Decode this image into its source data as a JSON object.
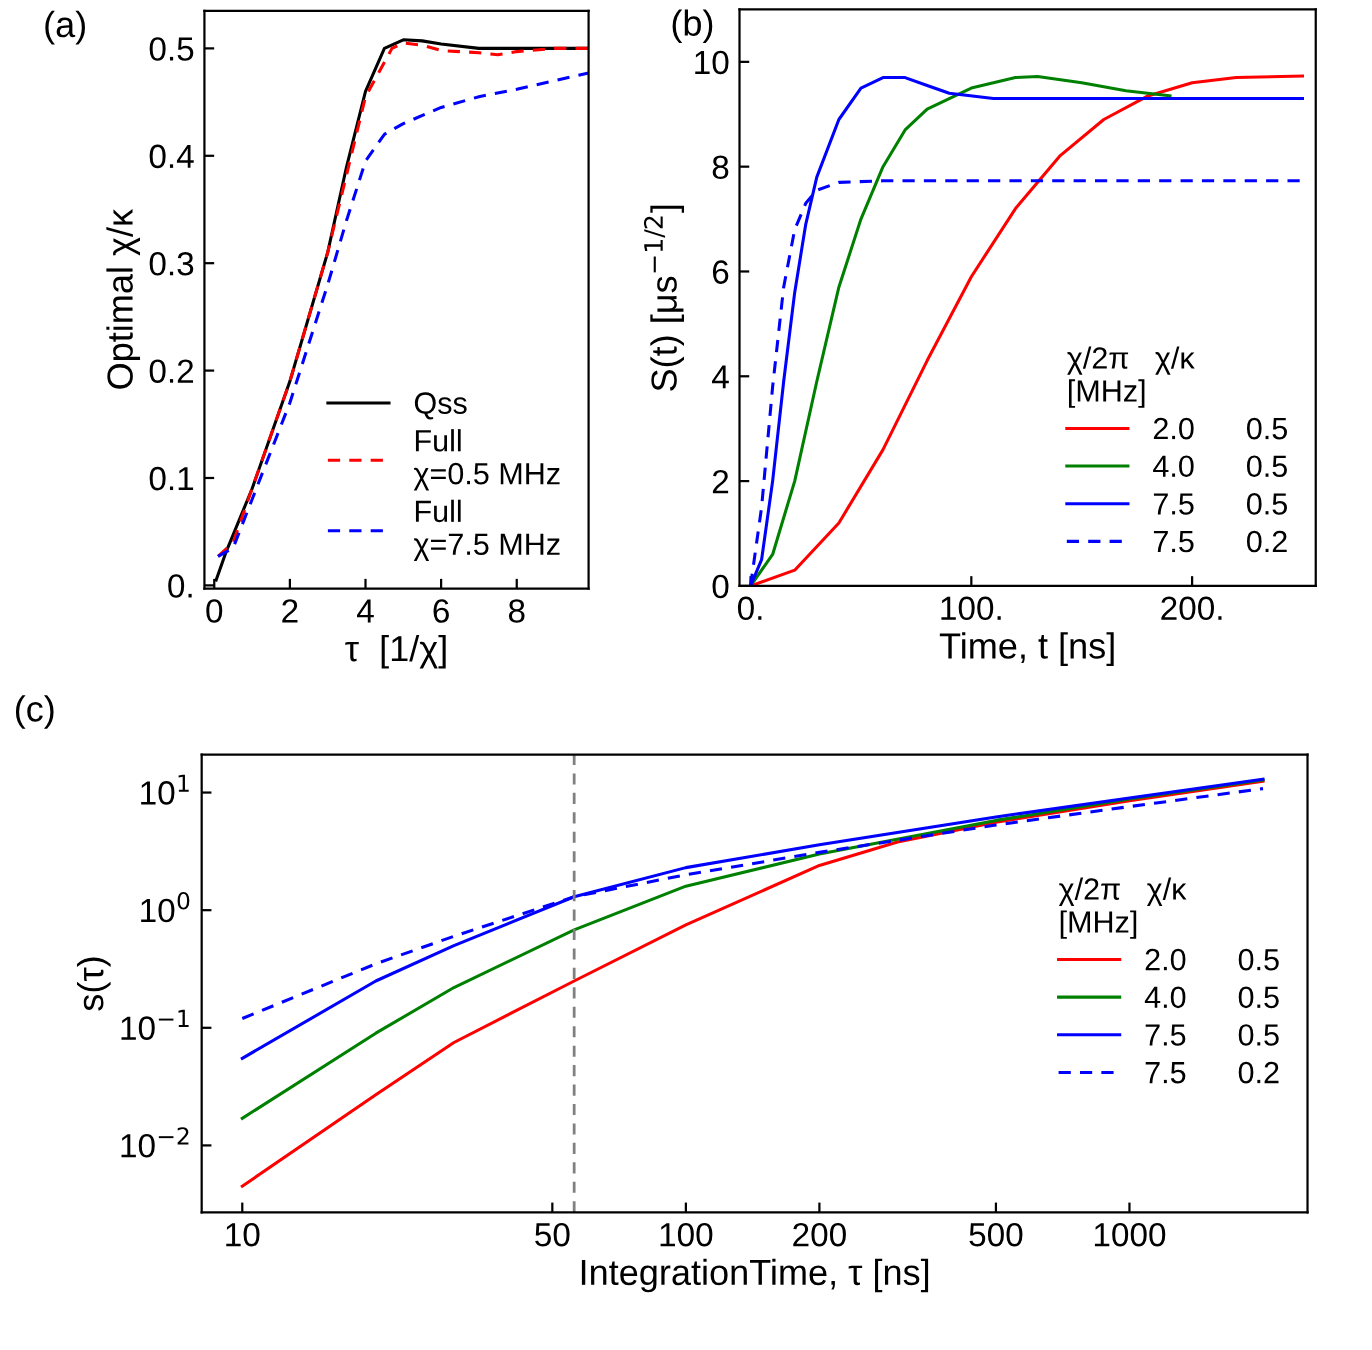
{
  "chart_data": [
    {
      "type": "line",
      "xlabel": "τ  [1/χ]",
      "ylabel": "Optimal χ/κ",
      "annotations": [
        "(a)"
      ],
      "xlim": [
        -0.26,
        9.9
      ],
      "ylim": [
        -0.003,
        0.535
      ],
      "xticks": [
        0,
        2,
        4,
        6,
        8
      ],
      "yticks": [
        {
          "value": 0,
          "label": "0."
        },
        0.1,
        0.2,
        0.3,
        0.4,
        0.5
      ],
      "grid": false,
      "legend": "bottom right",
      "series": [
        {
          "name": "Qss",
          "color": "#000000",
          "line_style": "solid",
          "x": [
            0.05,
            0.3,
            1,
            2,
            3,
            3.5,
            4,
            4.5,
            5,
            5.5,
            6,
            7,
            8,
            9.9
          ],
          "values": [
            0.005,
            0.03,
            0.09,
            0.19,
            0.31,
            0.39,
            0.46,
            0.5,
            0.508,
            0.507,
            0.504,
            0.5,
            0.5,
            0.5
          ]
        },
        {
          "name": "Full\nχ=0.5 MHz",
          "color": "#ff0000",
          "line_style": "dashed",
          "x": [
            0.1,
            0.5,
            1,
            2,
            3,
            4,
            4.7,
            5,
            5.5,
            6,
            7,
            7.5,
            8,
            9,
            9.9
          ],
          "values": [
            0.027,
            0.04,
            0.09,
            0.19,
            0.31,
            0.455,
            0.5,
            0.505,
            0.503,
            0.498,
            0.496,
            0.494,
            0.497,
            0.5,
            0.5
          ]
        },
        {
          "name": "Full\nχ=7.5 MHz",
          "color": "#0000ff",
          "line_style": "dashed",
          "x": [
            0.1,
            0.5,
            1,
            2,
            3,
            3.5,
            4,
            4.5,
            5,
            6,
            7,
            8,
            9,
            9.9
          ],
          "values": [
            0.027,
            0.035,
            0.08,
            0.17,
            0.28,
            0.34,
            0.395,
            0.42,
            0.43,
            0.445,
            0.455,
            0.462,
            0.47,
            0.477
          ]
        }
      ]
    },
    {
      "type": "line",
      "xlabel": "Time, t [ns]",
      "ylabel": "S(t) [μs$^{−1/2}$]",
      "annotations": [
        "(b)"
      ],
      "xlim": [
        -5,
        256
      ],
      "ylim": [
        0,
        11
      ],
      "xticks": [
        {
          "value": 0,
          "label": "0."
        },
        {
          "value": 100,
          "label": "100."
        },
        {
          "value": 200,
          "label": "200."
        }
      ],
      "yticks": [
        0,
        2,
        4,
        6,
        8,
        10
      ],
      "grid": false,
      "legend": "bottom right",
      "legend_title": "χ/2π   χ/κ\n[MHz]",
      "series": [
        {
          "name": "2.0      0.5",
          "color": "#ff0000",
          "line_style": "solid",
          "x": [
            0,
            20,
            40,
            60,
            80,
            100,
            120,
            140,
            160,
            180,
            200,
            220,
            250
          ],
          "values": [
            0,
            0.3,
            1.2,
            2.6,
            4.3,
            5.9,
            7.2,
            8.2,
            8.9,
            9.35,
            9.6,
            9.7,
            9.73
          ]
        },
        {
          "name": "4.0      0.5",
          "color": "#008000",
          "line_style": "solid",
          "x": [
            0,
            10,
            20,
            30,
            40,
            50,
            60,
            70,
            80,
            100,
            120,
            130,
            150,
            170,
            190
          ],
          "values": [
            0,
            0.6,
            2.0,
            3.9,
            5.7,
            7.0,
            8.0,
            8.7,
            9.1,
            9.5,
            9.7,
            9.72,
            9.6,
            9.45,
            9.35
          ]
        },
        {
          "name": "7.5      0.5",
          "color": "#0000ff",
          "line_style": "solid",
          "x": [
            0,
            5,
            10,
            15,
            20,
            25,
            30,
            40,
            50,
            60,
            70,
            80,
            90,
            110,
            250
          ],
          "values": [
            0,
            0.5,
            2.0,
            3.9,
            5.6,
            6.9,
            7.8,
            8.9,
            9.5,
            9.7,
            9.7,
            9.55,
            9.4,
            9.3,
            9.3
          ]
        },
        {
          "name": "7.5      0.2",
          "color": "#0000ff",
          "line_style": "dashed",
          "x": [
            0,
            5,
            10,
            15,
            20,
            25,
            30,
            40,
            60,
            250
          ],
          "values": [
            0,
            1.5,
            3.8,
            5.7,
            6.8,
            7.3,
            7.55,
            7.7,
            7.73,
            7.73
          ]
        }
      ]
    },
    {
      "type": "line",
      "xlabel": "IntegrationTime, τ [ns]",
      "ylabel": "s(τ)",
      "annotations": [
        "(c)"
      ],
      "log": "xy",
      "xlim": [
        8.1,
        2520
      ],
      "ylim": [
        0.0027,
        21
      ],
      "xticks": [
        10,
        50,
        100,
        200,
        500,
        1000
      ],
      "yticks": [
        {
          "value": 0.01,
          "label": "10$^{−2}$"
        },
        {
          "value": 0.1,
          "label": "10$^{−1}$"
        },
        {
          "value": 1,
          "label": "10$^{0}$"
        },
        {
          "value": 10,
          "label": "10$^{1}$"
        }
      ],
      "grid": false,
      "legend": "right",
      "legend_title": "χ/2π   χ/κ\n[MHz]",
      "ref_lines": [
        {
          "axis": "x",
          "value": 56,
          "color": "#808080",
          "line_style": "dashed"
        }
      ],
      "series": [
        {
          "name": "2.0      0.5",
          "color": "#ff0000",
          "line_style": "solid",
          "x": [
            10,
            20,
            30,
            56,
            100,
            200,
            300,
            500,
            1000,
            2000
          ],
          "values": [
            0.0045,
            0.027,
            0.075,
            0.25,
            0.75,
            2.4,
            3.8,
            5.6,
            8.5,
            12.5
          ]
        },
        {
          "name": "4.0      0.5",
          "color": "#008000",
          "line_style": "solid",
          "x": [
            10,
            20,
            30,
            56,
            100,
            200,
            500,
            1000,
            2000
          ],
          "values": [
            0.017,
            0.09,
            0.22,
            0.68,
            1.6,
            3.0,
            5.8,
            8.8,
            12.8
          ]
        },
        {
          "name": "7.5      0.5",
          "color": "#0000ff",
          "line_style": "solid",
          "x": [
            10,
            20,
            30,
            56,
            100,
            200,
            500,
            1000,
            2000
          ],
          "values": [
            0.055,
            0.25,
            0.5,
            1.3,
            2.3,
            3.6,
            6.2,
            9.0,
            13
          ]
        },
        {
          "name": "7.5      0.2",
          "color": "#0000ff",
          "line_style": "dashed",
          "x": [
            10,
            20,
            30,
            56,
            100,
            200,
            500,
            1000,
            2000
          ],
          "values": [
            0.12,
            0.35,
            0.6,
            1.3,
            2.0,
            3.1,
            5.3,
            7.6,
            10.8
          ]
        }
      ]
    }
  ]
}
